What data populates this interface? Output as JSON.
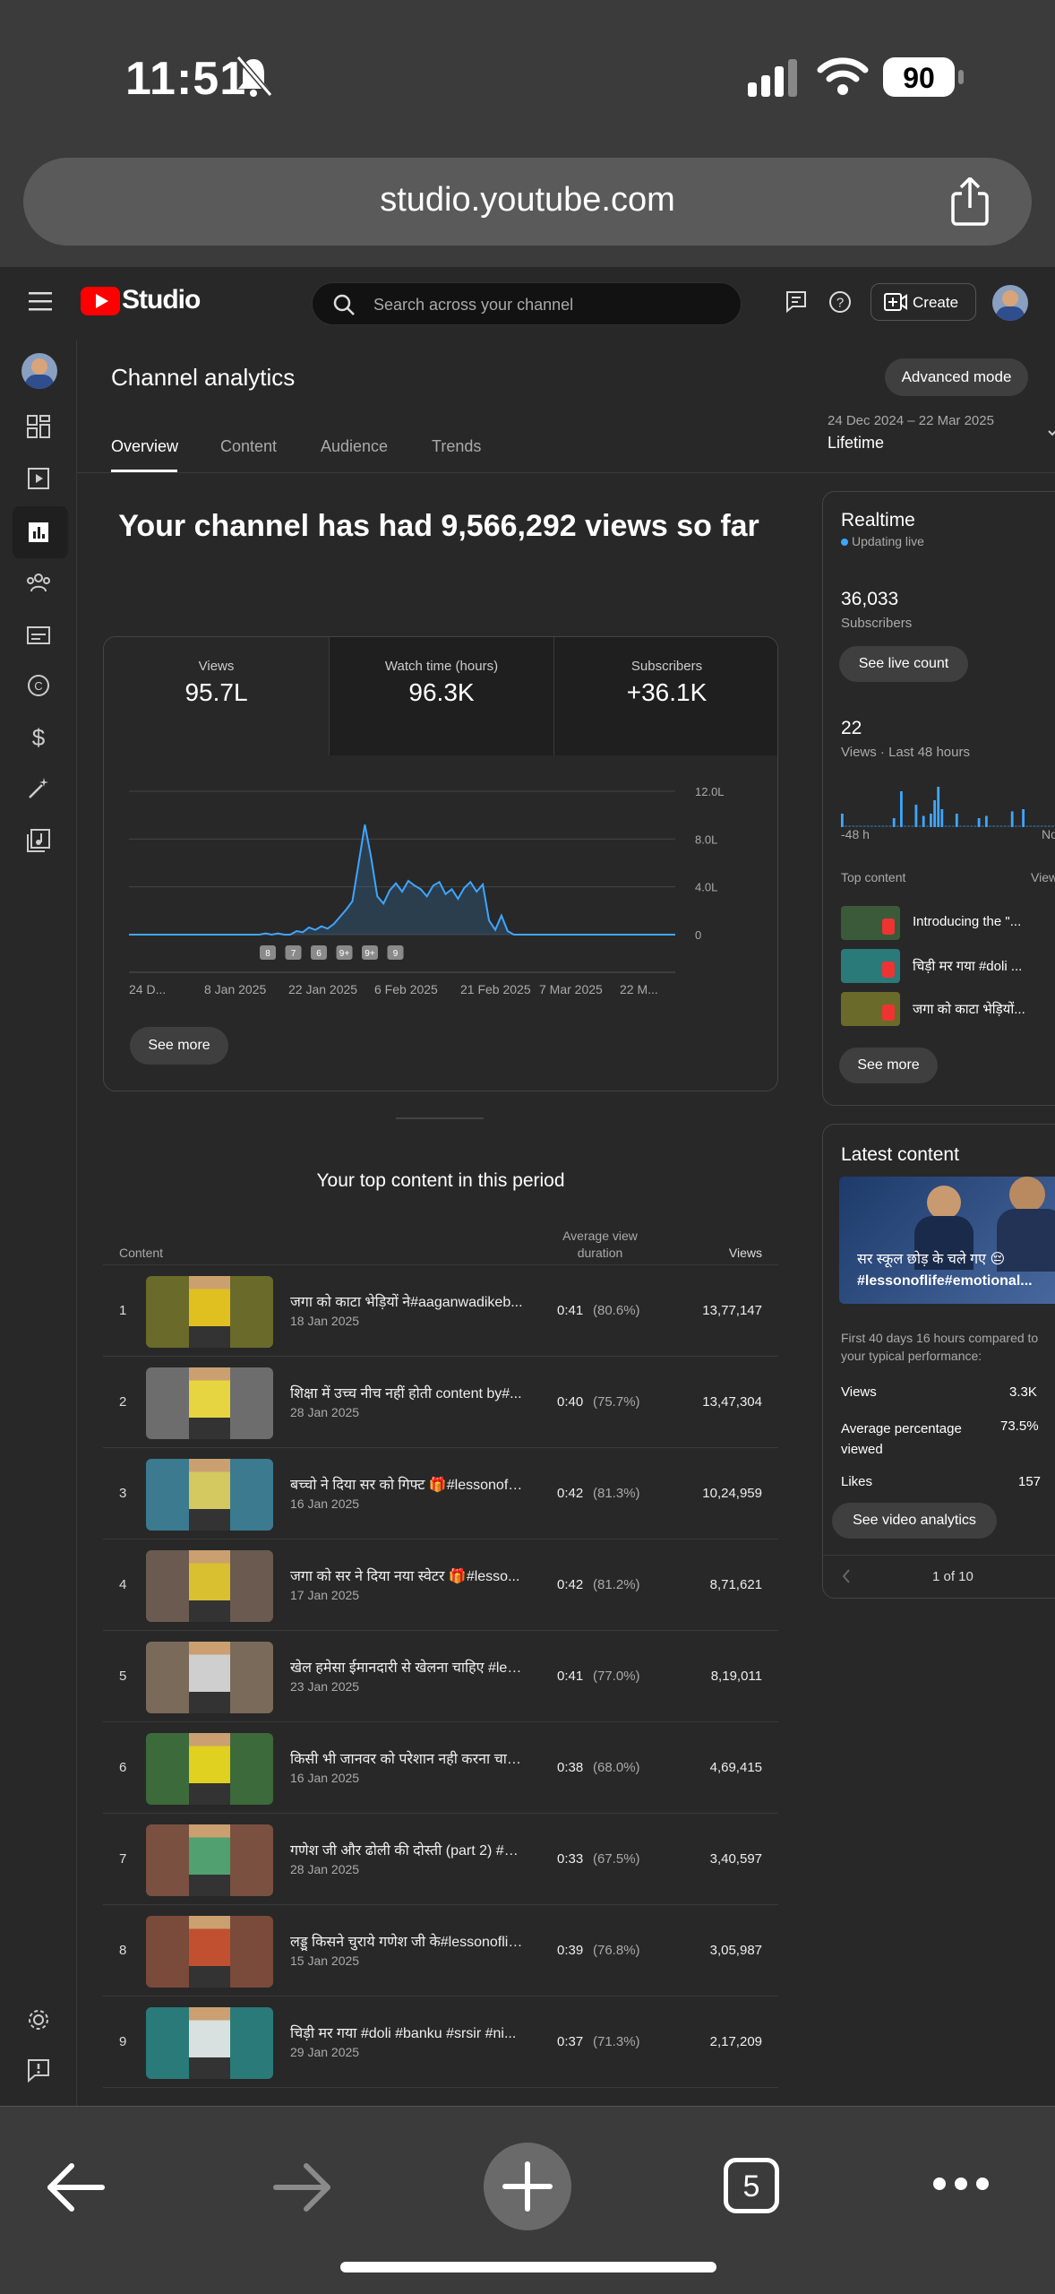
{
  "status_bar": {
    "time": "11:51",
    "battery": "90"
  },
  "browser": {
    "url": "studio.youtube.com",
    "tabs_count": "5"
  },
  "header": {
    "logo_text": "Studio",
    "search_placeholder": "Search across your channel",
    "create_label": "Create"
  },
  "page": {
    "title": "Channel analytics",
    "advanced_mode_label": "Advanced mode",
    "tabs": [
      {
        "label": "Overview"
      },
      {
        "label": "Content"
      },
      {
        "label": "Audience"
      },
      {
        "label": "Trends"
      }
    ],
    "date_range": {
      "dates": "24 Dec 2024 – 22 Mar 2025",
      "label": "Lifetime"
    },
    "headline": "Your channel has had 9,566,292 views so far"
  },
  "metrics": [
    {
      "label": "Views",
      "value": "95.7L"
    },
    {
      "label": "Watch time (hours)",
      "value": "96.3K"
    },
    {
      "label": "Subscribers",
      "value": "+36.1K"
    }
  ],
  "chart_data": {
    "type": "area",
    "title": "",
    "x_ticks": [
      "24 D...",
      "8 Jan 2025",
      "22 Jan 2025",
      "6 Feb 2025",
      "21 Feb 2025",
      "7 Mar 2025",
      "22 M..."
    ],
    "y_ticks": [
      "12.0L",
      "8.0L",
      "4.0L",
      "0"
    ],
    "ylim": [
      0,
      12.0
    ],
    "y_unit": "L",
    "series": [
      {
        "values": [
          0,
          0,
          0,
          0,
          0,
          0,
          0,
          0,
          0,
          0,
          0,
          0,
          0,
          0,
          0,
          0,
          0,
          0,
          0,
          0,
          0,
          0,
          0.1,
          0,
          0.1,
          0,
          0,
          0.3,
          0.2,
          0.6,
          0.4,
          0.7,
          0.5,
          0.9,
          1.5,
          2.1,
          2.8,
          6.0,
          9.2,
          6.5,
          3.2,
          2.6,
          3.7,
          4.3,
          3.6,
          4.5,
          4.1,
          3.8,
          3.2,
          4.1,
          4.4,
          3.4,
          3.8,
          3.0,
          3.9,
          4.4,
          3.6,
          4.2,
          1.2,
          0.4,
          1.6,
          0.3,
          0,
          0,
          0,
          0,
          0,
          0,
          0,
          0,
          0,
          0,
          0,
          0,
          0,
          0,
          0,
          0,
          0,
          0,
          0,
          0,
          0,
          0,
          0,
          0,
          0,
          0,
          0
        ]
      }
    ],
    "markers": [
      "8",
      "7",
      "6",
      "9+",
      "9+",
      "9"
    ],
    "grid": true
  },
  "see_more_label": "See more",
  "top_content": {
    "title": "Your top content in this period",
    "headers": {
      "content": "Content",
      "avg": "Average view duration",
      "views": "Views"
    },
    "rows": [
      {
        "n": "1",
        "title": "जगा को काटा भेड़ियों ने#aaganwadikeb...",
        "date": "18 Jan 2025",
        "avg": "0:41",
        "pct": "(80.6%)",
        "views": "13,77,147",
        "bg": "#6a6a2a",
        "fig": "#e0c020"
      },
      {
        "n": "2",
        "title": "शिक्षा में उच्च नीच नहीं होती content by#...",
        "date": "28 Jan 2025",
        "avg": "0:40",
        "pct": "(75.7%)",
        "views": "13,47,304",
        "bg": "#6d6d6d",
        "fig": "#e6d540"
      },
      {
        "n": "3",
        "title": "बच्चो ने दिया सर को गिफ्ट 🎁#lessonofli...",
        "date": "16 Jan 2025",
        "avg": "0:42",
        "pct": "(81.3%)",
        "views": "10,24,959",
        "bg": "#3c7a90",
        "fig": "#d4c860"
      },
      {
        "n": "4",
        "title": "जगा को सर ने दिया नया स्वेटर 🎁#lesso...",
        "date": "17 Jan 2025",
        "avg": "0:42",
        "pct": "(81.2%)",
        "views": "8,71,621",
        "bg": "#6a5a50",
        "fig": "#d8c030"
      },
      {
        "n": "5",
        "title": "खेल हमेसा ईमानदारी से खेलना चाहिए #les...",
        "date": "23 Jan 2025",
        "avg": "0:41",
        "pct": "(77.0%)",
        "views": "8,19,011",
        "bg": "#7a6a5a",
        "fig": "#cfcfcf"
      },
      {
        "n": "6",
        "title": "किसी भी जानवर को परेशान नही करना चाहि...",
        "date": "16 Jan 2025",
        "avg": "0:38",
        "pct": "(68.0%)",
        "views": "4,69,415",
        "bg": "#3c6a3a",
        "fig": "#e0d020"
      },
      {
        "n": "7",
        "title": "गणेश जी और ढोली की दोस्ती (part 2) #sr...",
        "date": "28 Jan 2025",
        "avg": "0:33",
        "pct": "(67.5%)",
        "views": "3,40,597",
        "bg": "#7a5040",
        "fig": "#50a070"
      },
      {
        "n": "8",
        "title": "लड्डू किसने चुराये गणेश जी के#lessonoflif...",
        "date": "15 Jan 2025",
        "avg": "0:39",
        "pct": "(76.8%)",
        "views": "3,05,987",
        "bg": "#7a4a3a",
        "fig": "#c05030"
      },
      {
        "n": "9",
        "title": "चिड़ी मर गया #doli #banku #srsir #ni...",
        "date": "29 Jan 2025",
        "avg": "0:37",
        "pct": "(71.3%)",
        "views": "2,17,209",
        "bg": "#2a7a7a",
        "fig": "#d8e0e0"
      }
    ]
  },
  "realtime": {
    "title": "Realtime",
    "status": "Updating live",
    "subscribers_value": "36,033",
    "subscribers_label": "Subscribers",
    "live_count_label": "See live count",
    "views_value": "22",
    "views_label": "Views · Last 48 hours",
    "bars": [
      0.3,
      0,
      0,
      0,
      0,
      0,
      0,
      0,
      0,
      0,
      0,
      0,
      0,
      0,
      0.2,
      0,
      0.8,
      0,
      0,
      0,
      0.5,
      0,
      0.25,
      0,
      0.3,
      0.6,
      0.9,
      0.4,
      0,
      0,
      0,
      0.3,
      0,
      0,
      0,
      0,
      0,
      0.2,
      0,
      0.25,
      0,
      0,
      0,
      0,
      0,
      0,
      0.35,
      0,
      0,
      0.4,
      0,
      0,
      0,
      0,
      0,
      0,
      0,
      0,
      0,
      0.5,
      0,
      0.3,
      0.9
    ],
    "axis_left": "-48 h",
    "axis_right": "No",
    "top_content_label": "Top content",
    "top_content_right": "View",
    "items": [
      {
        "title": "Introducing the \"...",
        "bg": "#3a5a3a"
      },
      {
        "title": "चिड़ी मर गया #doli ...",
        "bg": "#2a7a7a"
      },
      {
        "title": "जगा को काटा भेड़ियों...",
        "bg": "#6a6a2a"
      }
    ]
  },
  "latest": {
    "title": "Latest content",
    "thumb_caption_1": "सर स्कूल छोड़ के चले गए 😔",
    "thumb_caption_2": "#lessonoflife#emotional...",
    "compare_text_1": "First 40 days 16 hours compared to",
    "compare_text_2": "your typical performance:",
    "stats": [
      {
        "label": "Views",
        "value": "3.3K"
      },
      {
        "label": "Average percentage viewed",
        "value": "73.5%"
      },
      {
        "label": "Likes",
        "value": "157"
      }
    ],
    "analytics_label": "See video analytics",
    "pager": "1 of 10"
  },
  "colors": {
    "accent": "#3ea6ff",
    "brand": "#ff0000"
  }
}
